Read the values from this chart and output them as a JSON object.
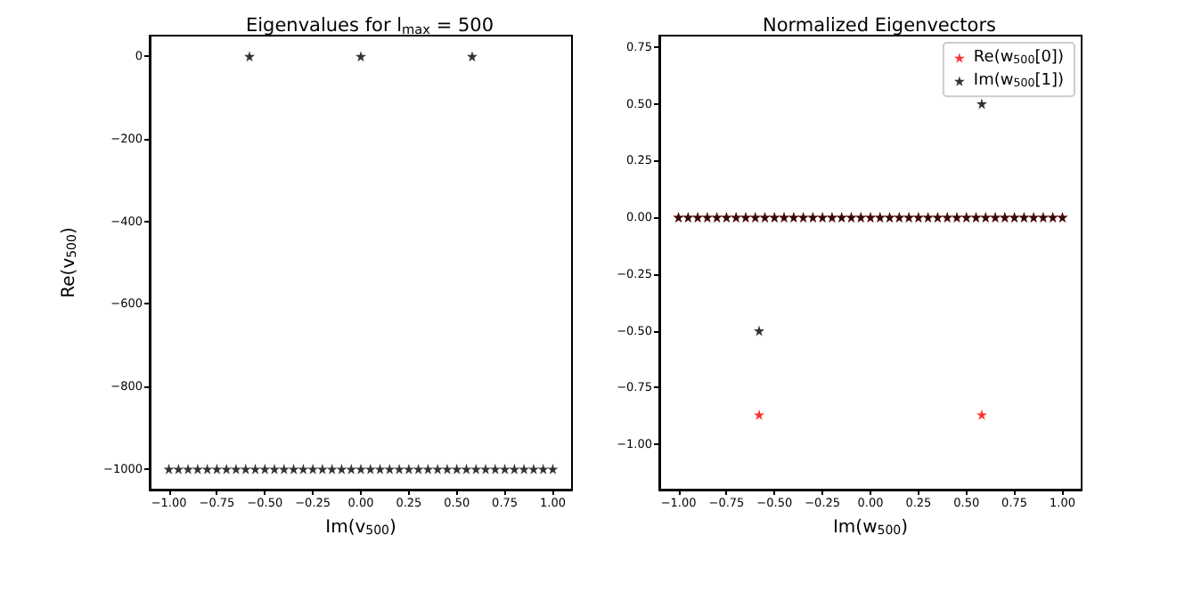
{
  "chart_data": [
    {
      "type": "scatter",
      "title": "Eigenvalues for l$_{max}$ = 500",
      "xlabel": "Im(v$_{500}$)",
      "ylabel": "Re(v$_{500}$)",
      "marker": "star",
      "grid": false,
      "xlim": [
        -1.1,
        1.1
      ],
      "ylim": [
        -1050,
        50
      ],
      "xticks": [
        {
          "value": -1,
          "label": "−1.00"
        },
        {
          "value": -0.75,
          "label": "−0.75"
        },
        {
          "value": -0.5,
          "label": "−0.50"
        },
        {
          "value": -0.25,
          "label": "−0.25"
        },
        {
          "value": 0,
          "label": "0.00"
        },
        {
          "value": 0.25,
          "label": "0.25"
        },
        {
          "value": 0.5,
          "label": "0.50"
        },
        {
          "value": 0.75,
          "label": "0.75"
        },
        {
          "value": 1,
          "label": "1.00"
        }
      ],
      "yticks": [
        {
          "value": -1000,
          "label": "−1000"
        },
        {
          "value": -800,
          "label": "−800"
        },
        {
          "value": -600,
          "label": "−600"
        },
        {
          "value": -400,
          "label": "−400"
        },
        {
          "value": -200,
          "label": "−200"
        },
        0
      ],
      "series": [
        {
          "color": "#000000",
          "x": [
            -1,
            -0.95,
            -0.9,
            -0.85,
            -0.8,
            -0.75,
            -0.7,
            -0.65,
            -0.6,
            -0.55,
            -0.5,
            -0.45,
            -0.4,
            -0.35,
            -0.3,
            -0.25,
            -0.2,
            -0.15,
            -0.1,
            -0.05,
            0,
            0.05,
            0.1,
            0.15,
            0.2,
            0.25,
            0.3,
            0.35,
            0.4,
            0.45,
            0.5,
            0.55,
            0.6,
            0.65,
            0.7,
            0.75,
            0.8,
            0.85,
            0.9,
            0.95,
            1,
            -0.58,
            0,
            0.58
          ],
          "values": [
            -1000,
            -1000,
            -1000,
            -1000,
            -1000,
            -1000,
            -1000,
            -1000,
            -1000,
            -1000,
            -1000,
            -1000,
            -1000,
            -1000,
            -1000,
            -1000,
            -1000,
            -1000,
            -1000,
            -1000,
            -1000,
            -1000,
            -1000,
            -1000,
            -1000,
            -1000,
            -1000,
            -1000,
            -1000,
            -1000,
            -1000,
            -1000,
            -1000,
            -1000,
            -1000,
            -1000,
            -1000,
            -1000,
            -1000,
            -1000,
            -1000,
            0,
            0,
            0
          ]
        }
      ]
    },
    {
      "type": "scatter",
      "title": "Normalized Eigenvectors",
      "xlabel": "Im(w$_{500}$)",
      "marker": "star",
      "grid": false,
      "legend": "top right",
      "xlim": [
        -1.1,
        1.1
      ],
      "ylim": [
        -1.2,
        0.8
      ],
      "xticks": [
        {
          "value": -1,
          "label": "−1.00"
        },
        {
          "value": -0.75,
          "label": "−0.75"
        },
        {
          "value": -0.5,
          "label": "−0.50"
        },
        {
          "value": -0.25,
          "label": "−0.25"
        },
        {
          "value": 0,
          "label": "0.00"
        },
        {
          "value": 0.25,
          "label": "0.25"
        },
        {
          "value": 0.5,
          "label": "0.50"
        },
        {
          "value": 0.75,
          "label": "0.75"
        },
        {
          "value": 1,
          "label": "1.00"
        }
      ],
      "yticks": [
        {
          "value": -1,
          "label": "−1.00"
        },
        {
          "value": -0.75,
          "label": "−0.75"
        },
        {
          "value": -0.5,
          "label": "−0.50"
        },
        {
          "value": -0.25,
          "label": "−0.25"
        },
        {
          "value": 0,
          "label": "0.00"
        },
        {
          "value": 0.25,
          "label": "0.25"
        },
        {
          "value": 0.5,
          "label": "0.50"
        },
        {
          "value": 0.75,
          "label": "0.75"
        }
      ],
      "series": [
        {
          "name": "Re(w$_{500}$[0])",
          "color": "#ff0000",
          "x": [
            -1,
            -0.95,
            -0.9,
            -0.85,
            -0.8,
            -0.75,
            -0.7,
            -0.65,
            -0.6,
            -0.55,
            -0.5,
            -0.45,
            -0.4,
            -0.35,
            -0.3,
            -0.25,
            -0.2,
            -0.15,
            -0.1,
            -0.05,
            0,
            0.05,
            0.1,
            0.15,
            0.2,
            0.25,
            0.3,
            0.35,
            0.4,
            0.45,
            0.5,
            0.55,
            0.6,
            0.65,
            0.7,
            0.75,
            0.8,
            0.85,
            0.9,
            0.95,
            1,
            -0.58,
            0.58
          ],
          "values": [
            0,
            0,
            0,
            0,
            0,
            0,
            0,
            0,
            0,
            0,
            0,
            0,
            0,
            0,
            0,
            0,
            0,
            0,
            0,
            0,
            0,
            0,
            0,
            0,
            0,
            0,
            0,
            0,
            0,
            0,
            0,
            0,
            0,
            0,
            0,
            0,
            0,
            0,
            0,
            0,
            0,
            -0.87,
            -0.87
          ]
        },
        {
          "name": "Im(w$_{500}$[1])",
          "color": "#000000",
          "x": [
            -1,
            -0.95,
            -0.9,
            -0.85,
            -0.8,
            -0.75,
            -0.7,
            -0.65,
            -0.6,
            -0.55,
            -0.5,
            -0.45,
            -0.4,
            -0.35,
            -0.3,
            -0.25,
            -0.2,
            -0.15,
            -0.1,
            -0.05,
            0,
            0.05,
            0.1,
            0.15,
            0.2,
            0.25,
            0.3,
            0.35,
            0.4,
            0.45,
            0.5,
            0.55,
            0.6,
            0.65,
            0.7,
            0.75,
            0.8,
            0.85,
            0.9,
            0.95,
            1,
            -0.58,
            0.58
          ],
          "values": [
            0,
            0,
            0,
            0,
            0,
            0,
            0,
            0,
            0,
            0,
            0,
            0,
            0,
            0,
            0,
            0,
            0,
            0,
            0,
            0,
            0,
            0,
            0,
            0,
            0,
            0,
            0,
            0,
            0,
            0,
            0,
            0,
            0,
            0,
            0,
            0,
            0,
            0,
            0,
            0,
            0,
            -0.5,
            0.5
          ]
        }
      ]
    }
  ]
}
